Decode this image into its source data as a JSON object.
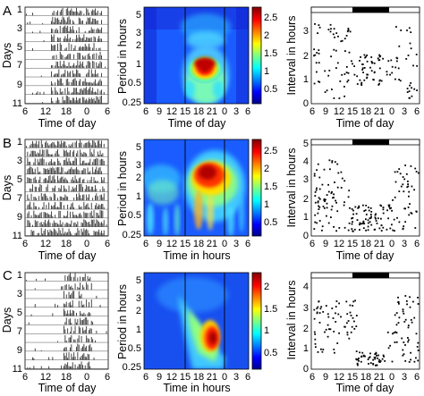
{
  "panels": [
    {
      "label": "A",
      "actogram": {
        "y_axis_label": "Days",
        "x_axis_label": "Time of day",
        "day_ticks": [
          "1",
          "3",
          "5",
          "7",
          "9",
          "11"
        ],
        "time_ticks": [
          "6",
          "12",
          "18",
          "0",
          "6"
        ]
      },
      "wavelet": {
        "y_axis_label": "Period in hours",
        "x_axis_label": "Time of day",
        "period_ticks": [
          "5",
          "3",
          "2",
          "1",
          "0.5",
          "0.25"
        ],
        "time_ticks": [
          "6",
          "9",
          "12",
          "15",
          "18",
          "21",
          "0",
          "3",
          "6"
        ],
        "colorbar_ticks": [
          "2.5",
          "2",
          "1.5",
          "1",
          "0.5"
        ]
      },
      "intervals": {
        "y_axis_label": "Interval in hours",
        "x_axis_label": "Time of day",
        "y_ticks": [
          "3",
          "2",
          "1",
          "0"
        ],
        "time_ticks": [
          "6",
          "9",
          "12",
          "15",
          "18",
          "21",
          "0",
          "3",
          "6"
        ]
      }
    },
    {
      "label": "B",
      "actogram": {
        "y_axis_label": "Days",
        "x_axis_label": "Time of day",
        "day_ticks": [
          "1",
          "3",
          "5",
          "7",
          "9",
          "11"
        ],
        "time_ticks": [
          "6",
          "12",
          "18",
          "0",
          "6"
        ]
      },
      "wavelet": {
        "y_axis_label": "Period in hours",
        "x_axis_label": "Time in hours",
        "period_ticks": [
          "5",
          "3",
          "2",
          "1",
          "0.5",
          "0.25"
        ],
        "time_ticks": [
          "6",
          "9",
          "12",
          "15",
          "18",
          "21",
          "0",
          "3",
          "6"
        ],
        "colorbar_ticks": [
          "2.5",
          "2",
          "1.5",
          "1",
          "0.5"
        ]
      },
      "intervals": {
        "y_axis_label": "Interval in hours",
        "x_axis_label": "Time of day",
        "y_ticks": [
          "5",
          "4",
          "3",
          "2",
          "1",
          "0"
        ],
        "time_ticks": [
          "6",
          "9",
          "12",
          "15",
          "18",
          "21",
          "0",
          "3",
          "6"
        ]
      }
    },
    {
      "label": "C",
      "actogram": {
        "y_axis_label": "Days",
        "x_axis_label": "Time of day",
        "day_ticks": [
          "1",
          "3",
          "5",
          "7",
          "9",
          "11"
        ],
        "time_ticks": [
          "6",
          "12",
          "18",
          "0",
          "6"
        ]
      },
      "wavelet": {
        "y_axis_label": "Period in hours",
        "x_axis_label": "Time in hours",
        "period_ticks": [
          "5",
          "3",
          "2",
          "1",
          "0.5",
          "0.25"
        ],
        "time_ticks": [
          "6",
          "9",
          "12",
          "15",
          "18",
          "21",
          "0",
          "3",
          "6"
        ],
        "colorbar_ticks": [
          "2",
          "1.5",
          "1",
          "0.5"
        ]
      },
      "intervals": {
        "y_axis_label": "Interval in hours",
        "x_axis_label": "Time of day",
        "y_ticks": [
          "4",
          "3",
          "2",
          "1",
          "0"
        ],
        "time_ticks": [
          "6",
          "9",
          "12",
          "15",
          "18",
          "21",
          "0",
          "3",
          "6"
        ]
      }
    }
  ]
}
